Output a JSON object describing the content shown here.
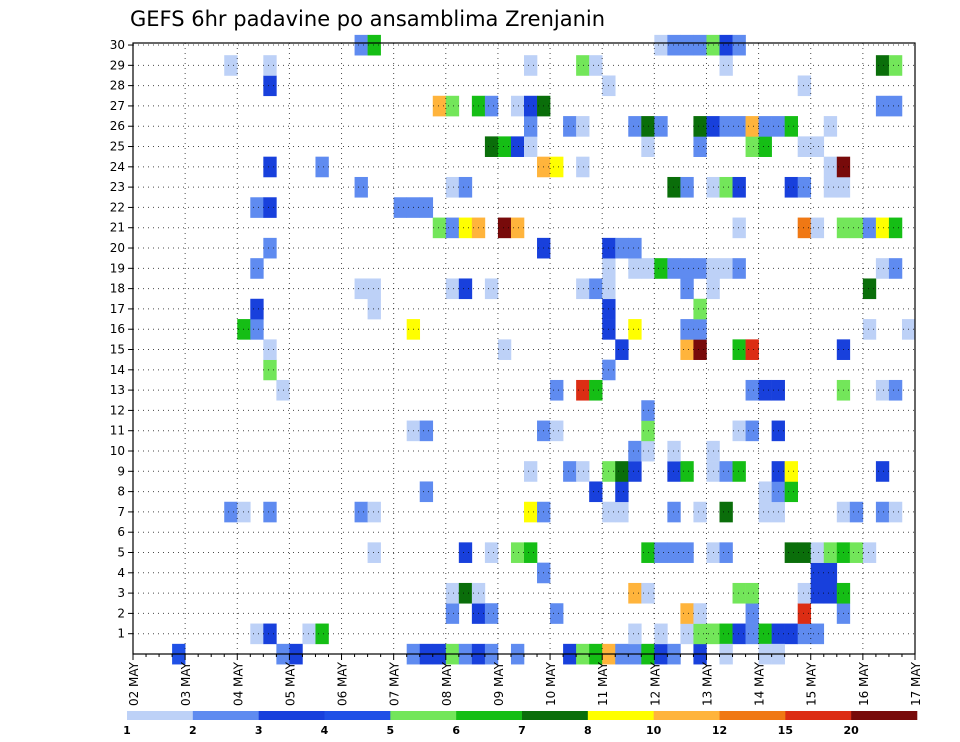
{
  "chart_data": {
    "type": "heatmap",
    "title": "GEFS 6hr padavine po ansamblima Zrenjanin",
    "xlabel": "",
    "ylabel": "",
    "x_ticks": [
      "02 MAY",
      "03 MAY",
      "04 MAY",
      "05 MAY",
      "06 MAY",
      "07 MAY",
      "08 MAY",
      "09 MAY",
      "10 MAY",
      "11 MAY",
      "12 MAY",
      "13 MAY",
      "14 MAY",
      "15 MAY",
      "16 MAY",
      "17 MAY"
    ],
    "y_ticks": [
      "1",
      "2",
      "3",
      "4",
      "5",
      "6",
      "7",
      "8",
      "9",
      "10",
      "11",
      "12",
      "13",
      "14",
      "15",
      "16",
      "17",
      "18",
      "19",
      "20",
      "21",
      "22",
      "23",
      "24",
      "25",
      "26",
      "27",
      "28",
      "29",
      "30"
    ],
    "x_unit": "6-hour steps from 02 MAY",
    "ylim": [
      0,
      30
    ],
    "grid": true,
    "legend_levels": [
      "1",
      "2",
      "3",
      "4",
      "5",
      "6",
      "7",
      "8",
      "10",
      "12",
      "15",
      "20"
    ],
    "legend_colors": [
      "#bdd1f7",
      "#5f8bf0",
      "#1840dc",
      "#1f50e6",
      "#73e65a",
      "#15be15",
      "#0a6e0a",
      "#ffff00",
      "#ffb43c",
      "#f07814",
      "#dc2d14",
      "#780a0a"
    ],
    "cells": [
      [
        3,
        0,
        4
      ],
      [
        11,
        0,
        2
      ],
      [
        12,
        0,
        3
      ],
      [
        21,
        0,
        2
      ],
      [
        22,
        0,
        3
      ],
      [
        23,
        0,
        3
      ],
      [
        24,
        0,
        5
      ],
      [
        25,
        0,
        2
      ],
      [
        26,
        0,
        3
      ],
      [
        27,
        0,
        2
      ],
      [
        29,
        0,
        2
      ],
      [
        33,
        0,
        3
      ],
      [
        34,
        0,
        5
      ],
      [
        35,
        0,
        6
      ],
      [
        36,
        0,
        10
      ],
      [
        37,
        0,
        2
      ],
      [
        38,
        0,
        2
      ],
      [
        39,
        0,
        6
      ],
      [
        40,
        0,
        3
      ],
      [
        41,
        0,
        2
      ],
      [
        43,
        0,
        3
      ],
      [
        9,
        1,
        1
      ],
      [
        10,
        1,
        3
      ],
      [
        13,
        1,
        1
      ],
      [
        14,
        1,
        6
      ],
      [
        38,
        1,
        1
      ],
      [
        40,
        1,
        1
      ],
      [
        42,
        1,
        1
      ],
      [
        43,
        1,
        5
      ],
      [
        44,
        1,
        5
      ],
      [
        45,
        1,
        6
      ],
      [
        46,
        1,
        3
      ],
      [
        47,
        1,
        2
      ],
      [
        48,
        1,
        6
      ],
      [
        49,
        1,
        3
      ],
      [
        50,
        1,
        3
      ],
      [
        51,
        1,
        2
      ],
      [
        52,
        1,
        2
      ],
      [
        49,
        0,
        1
      ],
      [
        48,
        0,
        1
      ],
      [
        45,
        0,
        1
      ],
      [
        24,
        2,
        2
      ],
      [
        26,
        2,
        3
      ],
      [
        27,
        2,
        2
      ],
      [
        32,
        2,
        2
      ],
      [
        42,
        2,
        10
      ],
      [
        43,
        2,
        1
      ],
      [
        47,
        2,
        2
      ],
      [
        51,
        2,
        15
      ],
      [
        54,
        2,
        2
      ],
      [
        24,
        3,
        1
      ],
      [
        25,
        3,
        7
      ],
      [
        26,
        3,
        1
      ],
      [
        38,
        3,
        10
      ],
      [
        39,
        3,
        1
      ],
      [
        46,
        3,
        5
      ],
      [
        47,
        3,
        5
      ],
      [
        51,
        3,
        1
      ],
      [
        52,
        3,
        3
      ],
      [
        53,
        3,
        3
      ],
      [
        54,
        3,
        6
      ],
      [
        31,
        4,
        2
      ],
      [
        52,
        4,
        3
      ],
      [
        53,
        4,
        3
      ],
      [
        18,
        5,
        1
      ],
      [
        25,
        5,
        3
      ],
      [
        27,
        5,
        1
      ],
      [
        29,
        5,
        5
      ],
      [
        30,
        5,
        6
      ],
      [
        39,
        5,
        6
      ],
      [
        40,
        5,
        2
      ],
      [
        41,
        5,
        2
      ],
      [
        42,
        5,
        2
      ],
      [
        44,
        5,
        1
      ],
      [
        45,
        5,
        2
      ],
      [
        50,
        5,
        7
      ],
      [
        51,
        5,
        7
      ],
      [
        52,
        5,
        1
      ],
      [
        53,
        5,
        5
      ],
      [
        54,
        5,
        6
      ],
      [
        55,
        5,
        5
      ],
      [
        56,
        5,
        1
      ],
      [
        7,
        7,
        2
      ],
      [
        8,
        7,
        1
      ],
      [
        10,
        7,
        2
      ],
      [
        17,
        7,
        2
      ],
      [
        18,
        7,
        1
      ],
      [
        30,
        7,
        8
      ],
      [
        31,
        7,
        2
      ],
      [
        36,
        7,
        1
      ],
      [
        37,
        7,
        1
      ],
      [
        41,
        7,
        2
      ],
      [
        43,
        7,
        1
      ],
      [
        45,
        7,
        7
      ],
      [
        48,
        7,
        1
      ],
      [
        49,
        7,
        1
      ],
      [
        54,
        7,
        1
      ],
      [
        55,
        7,
        2
      ],
      [
        57,
        7,
        2
      ],
      [
        58,
        7,
        1
      ],
      [
        22,
        8,
        2
      ],
      [
        35,
        8,
        3
      ],
      [
        37,
        8,
        3
      ],
      [
        48,
        8,
        1
      ],
      [
        49,
        8,
        2
      ],
      [
        50,
        8,
        6
      ],
      [
        30,
        9,
        1
      ],
      [
        33,
        9,
        2
      ],
      [
        34,
        9,
        1
      ],
      [
        36,
        9,
        5
      ],
      [
        37,
        9,
        7
      ],
      [
        38,
        9,
        3
      ],
      [
        41,
        9,
        3
      ],
      [
        42,
        9,
        6
      ],
      [
        44,
        9,
        1
      ],
      [
        45,
        9,
        2
      ],
      [
        46,
        9,
        6
      ],
      [
        49,
        9,
        3
      ],
      [
        50,
        9,
        8
      ],
      [
        57,
        9,
        3
      ],
      [
        38,
        10,
        2
      ],
      [
        39,
        10,
        1
      ],
      [
        41,
        10,
        1
      ],
      [
        44,
        10,
        1
      ],
      [
        21,
        11,
        1
      ],
      [
        22,
        11,
        2
      ],
      [
        31,
        11,
        2
      ],
      [
        32,
        11,
        1
      ],
      [
        39,
        11,
        5
      ],
      [
        46,
        11,
        1
      ],
      [
        47,
        11,
        2
      ],
      [
        49,
        11,
        3
      ],
      [
        39,
        12,
        2
      ],
      [
        11,
        13,
        1
      ],
      [
        32,
        13,
        2
      ],
      [
        34,
        13,
        15
      ],
      [
        35,
        13,
        6
      ],
      [
        47,
        13,
        2
      ],
      [
        48,
        13,
        3
      ],
      [
        49,
        13,
        3
      ],
      [
        54,
        13,
        5
      ],
      [
        57,
        13,
        1
      ],
      [
        58,
        13,
        2
      ],
      [
        10,
        14,
        5
      ],
      [
        36,
        14,
        2
      ],
      [
        10,
        15,
        1
      ],
      [
        28,
        15,
        1
      ],
      [
        37,
        15,
        3
      ],
      [
        42,
        15,
        10
      ],
      [
        43,
        15,
        20
      ],
      [
        46,
        15,
        6
      ],
      [
        47,
        15,
        15
      ],
      [
        54,
        15,
        3
      ],
      [
        8,
        16,
        6
      ],
      [
        9,
        16,
        2
      ],
      [
        21,
        16,
        8
      ],
      [
        36,
        16,
        3
      ],
      [
        38,
        16,
        8
      ],
      [
        59,
        16,
        1
      ],
      [
        42,
        16,
        2
      ],
      [
        43,
        16,
        2
      ],
      [
        56,
        16,
        1
      ],
      [
        9,
        17,
        3
      ],
      [
        43,
        17,
        5
      ],
      [
        18,
        17,
        1
      ],
      [
        36,
        17,
        3
      ],
      [
        17,
        18,
        1
      ],
      [
        18,
        18,
        1
      ],
      [
        24,
        18,
        1
      ],
      [
        25,
        18,
        3
      ],
      [
        27,
        18,
        1
      ],
      [
        34,
        18,
        1
      ],
      [
        35,
        18,
        2
      ],
      [
        36,
        18,
        1
      ],
      [
        42,
        18,
        2
      ],
      [
        44,
        18,
        1
      ],
      [
        56,
        18,
        7
      ],
      [
        9,
        19,
        2
      ],
      [
        36,
        19,
        1
      ],
      [
        38,
        19,
        1
      ],
      [
        39,
        19,
        1
      ],
      [
        40,
        19,
        6
      ],
      [
        41,
        19,
        2
      ],
      [
        42,
        19,
        2
      ],
      [
        43,
        19,
        2
      ],
      [
        44,
        19,
        1
      ],
      [
        45,
        19,
        1
      ],
      [
        46,
        19,
        2
      ],
      [
        57,
        19,
        1
      ],
      [
        58,
        19,
        2
      ],
      [
        10,
        20,
        2
      ],
      [
        31,
        20,
        3
      ],
      [
        36,
        20,
        3
      ],
      [
        37,
        20,
        2
      ],
      [
        38,
        20,
        2
      ],
      [
        23,
        21,
        5
      ],
      [
        24,
        21,
        2
      ],
      [
        25,
        21,
        8
      ],
      [
        26,
        21,
        10
      ],
      [
        28,
        21,
        20
      ],
      [
        29,
        21,
        10
      ],
      [
        46,
        21,
        1
      ],
      [
        51,
        21,
        12
      ],
      [
        52,
        21,
        1
      ],
      [
        54,
        21,
        5
      ],
      [
        55,
        21,
        5
      ],
      [
        56,
        21,
        2
      ],
      [
        57,
        21,
        8
      ],
      [
        58,
        21,
        6
      ],
      [
        9,
        22,
        2
      ],
      [
        10,
        22,
        3
      ],
      [
        20,
        22,
        2
      ],
      [
        21,
        22,
        2
      ],
      [
        22,
        22,
        2
      ],
      [
        17,
        23,
        2
      ],
      [
        24,
        23,
        1
      ],
      [
        25,
        23,
        2
      ],
      [
        41,
        23,
        7
      ],
      [
        42,
        23,
        2
      ],
      [
        44,
        23,
        1
      ],
      [
        45,
        23,
        5
      ],
      [
        46,
        23,
        3
      ],
      [
        50,
        23,
        3
      ],
      [
        51,
        23,
        2
      ],
      [
        53,
        23,
        1
      ],
      [
        54,
        23,
        1
      ],
      [
        10,
        24,
        3
      ],
      [
        14,
        24,
        2
      ],
      [
        31,
        24,
        10
      ],
      [
        32,
        24,
        8
      ],
      [
        34,
        24,
        1
      ],
      [
        53,
        24,
        1
      ],
      [
        54,
        24,
        20
      ],
      [
        27,
        25,
        7
      ],
      [
        28,
        25,
        6
      ],
      [
        29,
        25,
        3
      ],
      [
        30,
        25,
        1
      ],
      [
        39,
        25,
        1
      ],
      [
        43,
        25,
        2
      ],
      [
        47,
        25,
        5
      ],
      [
        48,
        25,
        6
      ],
      [
        51,
        25,
        1
      ],
      [
        52,
        25,
        1
      ],
      [
        30,
        26,
        2
      ],
      [
        33,
        26,
        2
      ],
      [
        34,
        26,
        1
      ],
      [
        38,
        26,
        2
      ],
      [
        39,
        26,
        7
      ],
      [
        40,
        26,
        2
      ],
      [
        43,
        26,
        7
      ],
      [
        44,
        26,
        3
      ],
      [
        45,
        26,
        2
      ],
      [
        46,
        26,
        2
      ],
      [
        47,
        26,
        10
      ],
      [
        48,
        26,
        2
      ],
      [
        49,
        26,
        2
      ],
      [
        50,
        26,
        6
      ],
      [
        53,
        26,
        1
      ],
      [
        23,
        27,
        10
      ],
      [
        24,
        27,
        5
      ],
      [
        26,
        27,
        6
      ],
      [
        27,
        27,
        2
      ],
      [
        29,
        27,
        1
      ],
      [
        30,
        27,
        3
      ],
      [
        31,
        27,
        7
      ],
      [
        57,
        27,
        2
      ],
      [
        58,
        27,
        2
      ],
      [
        10,
        28,
        3
      ],
      [
        36,
        28,
        1
      ],
      [
        51,
        28,
        1
      ],
      [
        7,
        29,
        1
      ],
      [
        10,
        29,
        1
      ],
      [
        30,
        29,
        1
      ],
      [
        34,
        29,
        5
      ],
      [
        35,
        29,
        1
      ],
      [
        45,
        29,
        1
      ],
      [
        57,
        29,
        7
      ],
      [
        58,
        29,
        5
      ],
      [
        17,
        30,
        2
      ],
      [
        18,
        30,
        6
      ],
      [
        40,
        30,
        1
      ],
      [
        41,
        30,
        2
      ],
      [
        42,
        30,
        2
      ],
      [
        43,
        30,
        2
      ],
      [
        44,
        30,
        5
      ],
      [
        45,
        30,
        3
      ],
      [
        46,
        30,
        2
      ]
    ]
  }
}
